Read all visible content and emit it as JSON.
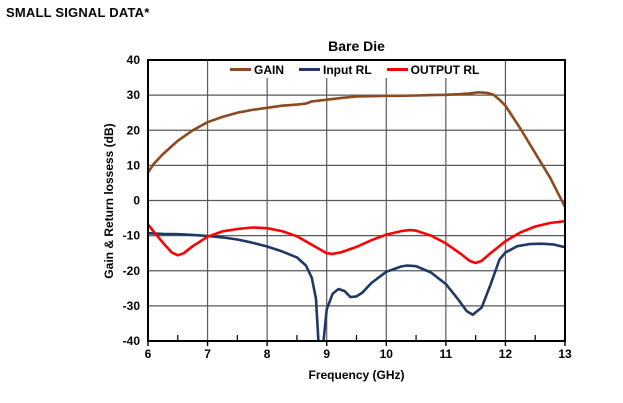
{
  "page": {
    "title": "SMALL SIGNAL DATA*"
  },
  "chart_data": {
    "type": "line",
    "title": "Bare Die",
    "xlabel": "Frequency (GHz)",
    "ylabel": "Gain & Return lossess (dB)",
    "xlim": [
      6,
      13
    ],
    "ylim": [
      -40,
      40
    ],
    "x_ticks": [
      6,
      7,
      8,
      9,
      10,
      11,
      12,
      13
    ],
    "x_minor_ticks": [
      6.5,
      7.5,
      8.5,
      9.5,
      10.5,
      11.5,
      12.5
    ],
    "y_ticks": [
      40,
      30,
      20,
      10,
      0,
      -10,
      -20,
      -30,
      -40
    ],
    "grid": true,
    "legend_position": "top-inside",
    "colors": {
      "axis": "#000000",
      "grid": "#595959",
      "text": "#000000"
    },
    "series": [
      {
        "name": "GAIN",
        "color": "#8C4A1F",
        "points": [
          [
            6,
            8
          ],
          [
            6.1,
            10.5
          ],
          [
            6.25,
            13.2
          ],
          [
            6.4,
            15.5
          ],
          [
            6.5,
            17
          ],
          [
            6.75,
            20
          ],
          [
            7,
            22.3
          ],
          [
            7.25,
            23.8
          ],
          [
            7.5,
            25
          ],
          [
            7.75,
            25.8
          ],
          [
            8,
            26.4
          ],
          [
            8.25,
            27
          ],
          [
            8.5,
            27.3
          ],
          [
            8.65,
            27.6
          ],
          [
            8.75,
            28.2
          ],
          [
            9,
            28.7
          ],
          [
            9.25,
            29.2
          ],
          [
            9.5,
            29.6
          ],
          [
            9.75,
            29.7
          ],
          [
            10,
            29.8
          ],
          [
            10.25,
            29.8
          ],
          [
            10.5,
            29.9
          ],
          [
            10.75,
            30
          ],
          [
            11,
            30.1
          ],
          [
            11.25,
            30.3
          ],
          [
            11.4,
            30.5
          ],
          [
            11.55,
            30.8
          ],
          [
            11.7,
            30.6
          ],
          [
            11.8,
            30.1
          ],
          [
            11.9,
            28.7
          ],
          [
            12,
            27
          ],
          [
            12.25,
            20.5
          ],
          [
            12.5,
            13.5
          ],
          [
            12.75,
            6.5
          ],
          [
            13,
            -1.8
          ]
        ]
      },
      {
        "name": "Input RL",
        "color": "#1F3864",
        "points": [
          [
            6,
            -9.3
          ],
          [
            6.25,
            -9.5
          ],
          [
            6.5,
            -9.6
          ],
          [
            6.75,
            -9.8
          ],
          [
            7,
            -10.1
          ],
          [
            7.25,
            -10.5
          ],
          [
            7.5,
            -11.1
          ],
          [
            7.75,
            -12
          ],
          [
            8,
            -13.1
          ],
          [
            8.25,
            -14.5
          ],
          [
            8.5,
            -16.2
          ],
          [
            8.65,
            -18.5
          ],
          [
            8.75,
            -22
          ],
          [
            8.82,
            -28
          ],
          [
            8.87,
            -43
          ],
          [
            8.93,
            -43
          ],
          [
            9,
            -31
          ],
          [
            9.1,
            -26.5
          ],
          [
            9.2,
            -25.2
          ],
          [
            9.3,
            -25.8
          ],
          [
            9.4,
            -27.5
          ],
          [
            9.5,
            -27.3
          ],
          [
            9.6,
            -26.2
          ],
          [
            9.75,
            -23.5
          ],
          [
            10,
            -20.3
          ],
          [
            10.25,
            -18.8
          ],
          [
            10.35,
            -18.5
          ],
          [
            10.5,
            -18.7
          ],
          [
            10.75,
            -20.5
          ],
          [
            11,
            -23.8
          ],
          [
            11.2,
            -28
          ],
          [
            11.35,
            -31.5
          ],
          [
            11.45,
            -32.5
          ],
          [
            11.6,
            -30.5
          ],
          [
            11.75,
            -24
          ],
          [
            11.9,
            -16.8
          ],
          [
            12,
            -14.8
          ],
          [
            12.2,
            -13
          ],
          [
            12.4,
            -12.4
          ],
          [
            12.6,
            -12.3
          ],
          [
            12.8,
            -12.5
          ],
          [
            13,
            -13.3
          ]
        ]
      },
      {
        "name": "OUTPUT RL",
        "color": "#FF0000",
        "points": [
          [
            6,
            -6.8
          ],
          [
            6.1,
            -9
          ],
          [
            6.25,
            -12
          ],
          [
            6.4,
            -14.8
          ],
          [
            6.5,
            -15.6
          ],
          [
            6.6,
            -15
          ],
          [
            6.75,
            -13
          ],
          [
            7,
            -10.3
          ],
          [
            7.25,
            -8.8
          ],
          [
            7.5,
            -8.1
          ],
          [
            7.75,
            -7.7
          ],
          [
            8,
            -7.9
          ],
          [
            8.25,
            -8.7
          ],
          [
            8.5,
            -10.2
          ],
          [
            8.75,
            -12.6
          ],
          [
            9,
            -15
          ],
          [
            9.1,
            -15.2
          ],
          [
            9.25,
            -14.7
          ],
          [
            9.5,
            -13.2
          ],
          [
            9.75,
            -11.3
          ],
          [
            10,
            -9.7
          ],
          [
            10.25,
            -8.7
          ],
          [
            10.4,
            -8.4
          ],
          [
            10.5,
            -8.6
          ],
          [
            10.75,
            -10
          ],
          [
            11,
            -12.2
          ],
          [
            11.25,
            -15.2
          ],
          [
            11.4,
            -17.2
          ],
          [
            11.5,
            -17.8
          ],
          [
            11.6,
            -17.2
          ],
          [
            11.75,
            -15
          ],
          [
            12,
            -11.6
          ],
          [
            12.25,
            -9.1
          ],
          [
            12.5,
            -7.4
          ],
          [
            12.75,
            -6.4
          ],
          [
            13,
            -5.9
          ]
        ]
      }
    ]
  }
}
